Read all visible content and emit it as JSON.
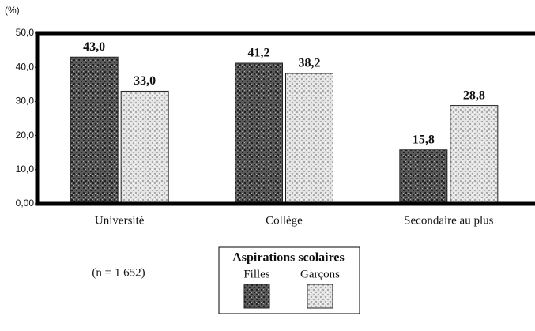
{
  "chart_data": {
    "type": "bar",
    "y_unit": "(%)",
    "x_label": "Aspirations scolaires",
    "annotation": "(n = 1 652)",
    "categories": [
      "Université",
      "Collège",
      "Secondaire au plus"
    ],
    "series": [
      {
        "name": "Filles",
        "color": "#5a5a5a",
        "values": [
          43.0,
          41.2,
          15.8
        ],
        "value_labels": [
          "43,0",
          "41,2",
          "15,8"
        ]
      },
      {
        "name": "Garçons",
        "color": "#e4e4e4",
        "values": [
          33.0,
          38.2,
          28.8
        ],
        "value_labels": [
          "33,0",
          "38,2",
          "28,8"
        ]
      }
    ],
    "ylim": [
      0,
      50
    ],
    "yticks": [
      {
        "value": 0,
        "label": "0,00"
      },
      {
        "value": 10,
        "label": "10,0"
      },
      {
        "value": 20,
        "label": "20,0"
      },
      {
        "value": 30,
        "label": "30,0"
      },
      {
        "value": 40,
        "label": "40,0"
      },
      {
        "value": 50,
        "label": "50,0"
      }
    ],
    "legend": "bottom"
  }
}
